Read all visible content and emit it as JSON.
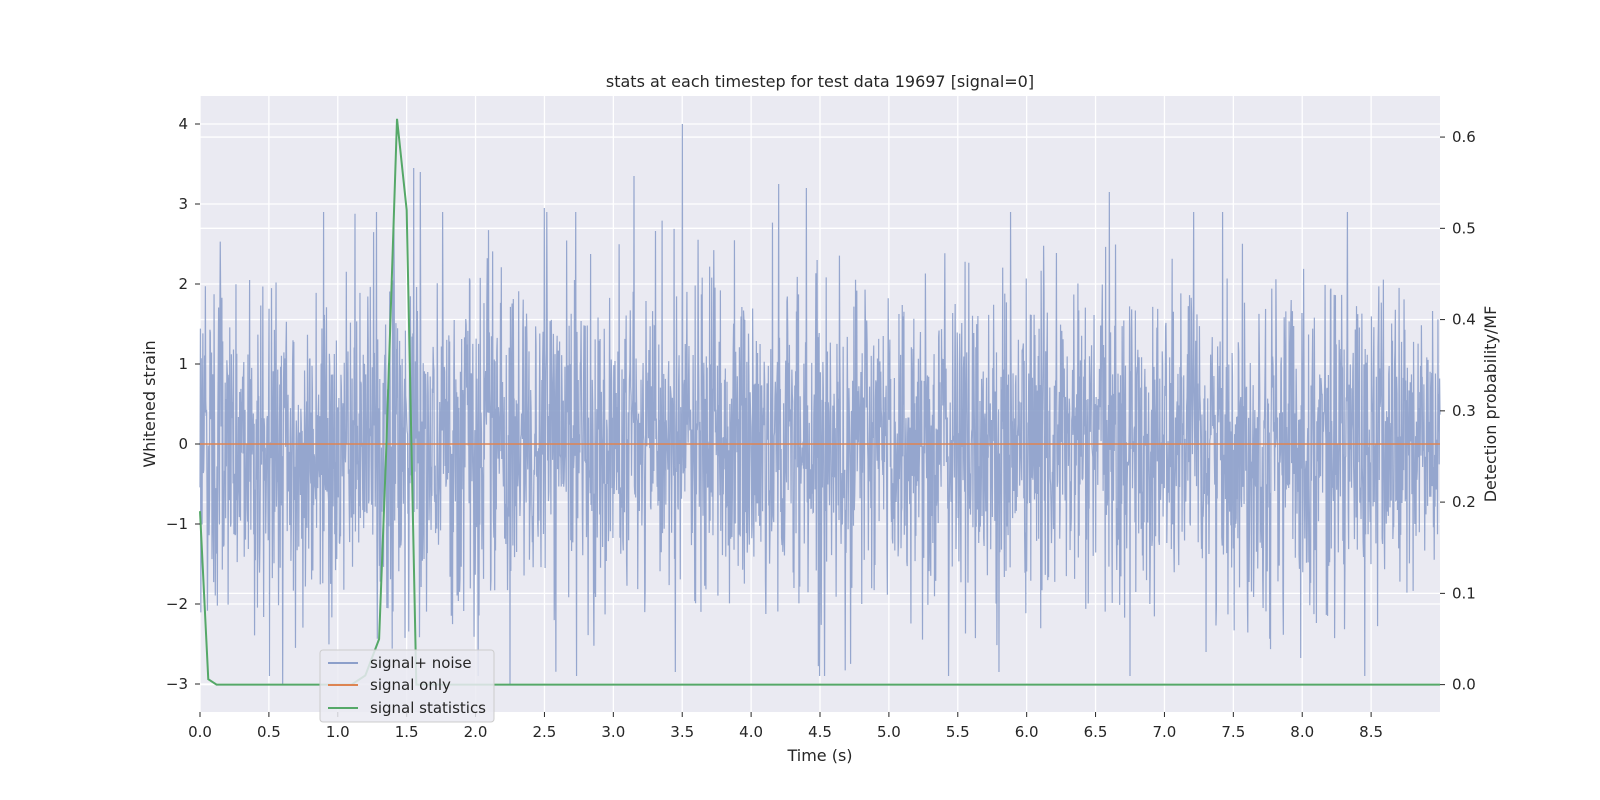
{
  "chart_data": {
    "type": "line",
    "title": "stats at each timestep for test data 19697 [signal=0]",
    "xlabel": "Time (s)",
    "ylabel": "Whitened strain",
    "ylabel_right": "Detection probability/MF",
    "xlim": [
      0.0,
      9.0
    ],
    "ylim": [
      -3.35,
      4.35
    ],
    "ylim_right": [
      -0.03,
      0.645
    ],
    "x_ticks": [
      "0.0",
      "0.5",
      "1.0",
      "1.5",
      "2.0",
      "2.5",
      "3.0",
      "3.5",
      "4.0",
      "4.5",
      "5.0",
      "5.5",
      "6.0",
      "6.5",
      "7.0",
      "7.5",
      "8.0",
      "8.5"
    ],
    "y_ticks": [
      "4",
      "3",
      "2",
      "1",
      "0",
      "−1",
      "−2",
      "−3"
    ],
    "y_right_ticks": [
      "0.6",
      "0.5",
      "0.4",
      "0.3",
      "0.2",
      "0.1",
      "0.0"
    ],
    "grid": true,
    "legend_position": "lower-left",
    "series": [
      {
        "name": "signal+ noise",
        "axis": "left",
        "color": "#8c9fca",
        "description": "dense Gaussian noise trace, mostly within ±2, peaks up to ~4",
        "peaks": [
          {
            "x": 0.6,
            "y": -3.0
          },
          {
            "x": 1.55,
            "y": 3.45
          },
          {
            "x": 1.6,
            "y": 3.4
          },
          {
            "x": 2.25,
            "y": -3.0
          },
          {
            "x": 2.5,
            "y": 2.95
          },
          {
            "x": 3.15,
            "y": 3.35
          },
          {
            "x": 3.5,
            "y": 4.0
          },
          {
            "x": 3.45,
            "y": -2.85
          },
          {
            "x": 4.2,
            "y": 3.25
          },
          {
            "x": 4.4,
            "y": 3.2
          },
          {
            "x": 5.8,
            "y": -2.85
          },
          {
            "x": 6.6,
            "y": 3.15
          }
        ]
      },
      {
        "name": "signal only",
        "axis": "left",
        "color": "#dd8452",
        "x": [
          0.0,
          9.0
        ],
        "y": [
          0.0,
          0.0
        ]
      },
      {
        "name": "signal statistics",
        "axis": "right",
        "color": "#55a868",
        "x": [
          0.0,
          0.06,
          0.12,
          1.1,
          1.2,
          1.25,
          1.3,
          1.35,
          1.43,
          1.5,
          1.57,
          1.6,
          1.7,
          9.0
        ],
        "y": [
          0.19,
          0.006,
          0.0,
          0.0,
          0.01,
          0.03,
          0.05,
          0.25,
          0.62,
          0.52,
          0.0,
          0.0,
          0.0,
          0.0
        ]
      }
    ]
  }
}
